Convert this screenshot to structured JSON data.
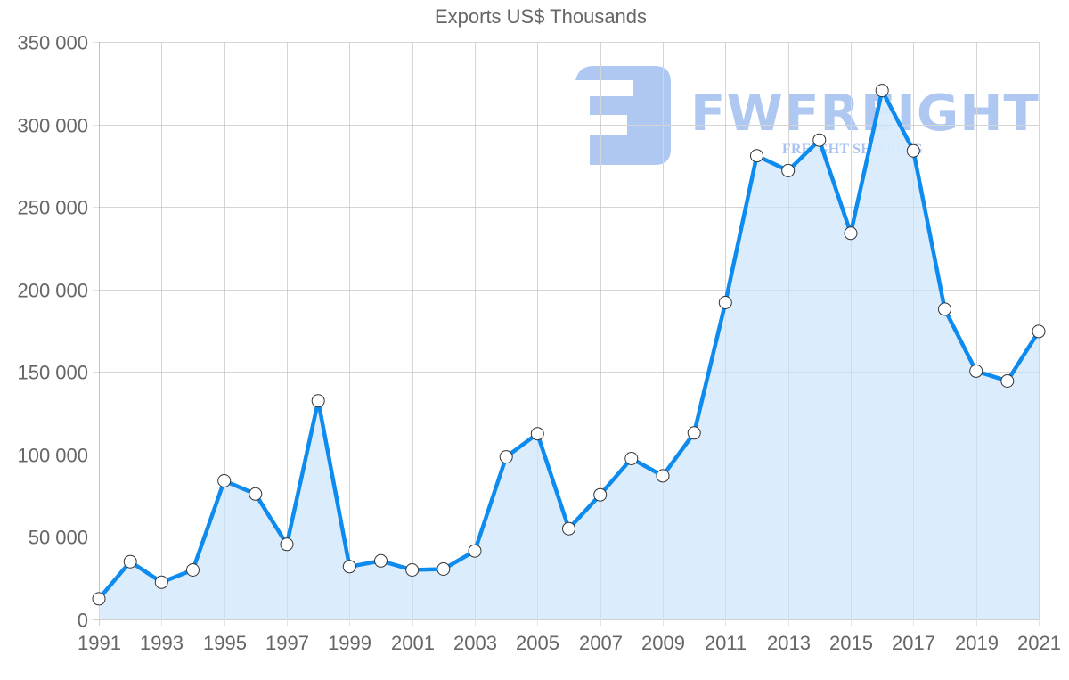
{
  "chart": {
    "title": "Exports US$ Thousands"
  },
  "watermark": {
    "brand": "FWFREIGHT",
    "tagline": "FREIGHT SHIPPING",
    "color": "#6e9be8"
  },
  "style": {
    "line_color": "#0d8bee",
    "fill_color": "#d9ecfd",
    "grid_color": "#e3e3e3",
    "axis_color": "#cfcfcf",
    "text_color": "#666666",
    "marker_fill": "#ffffff",
    "marker_stroke": "#333333"
  },
  "chart_data": {
    "type": "area",
    "title": "Exports US$ Thousands",
    "xlabel": "",
    "ylabel": "",
    "x": [
      1991,
      1992,
      1993,
      1994,
      1995,
      1996,
      1997,
      1998,
      1999,
      2000,
      2001,
      2002,
      2003,
      2004,
      2005,
      2006,
      2007,
      2008,
      2009,
      2010,
      2011,
      2012,
      2013,
      2014,
      2015,
      2016,
      2017,
      2018,
      2019,
      2020,
      2021
    ],
    "series": [
      {
        "name": "Exports US$ Thousands",
        "values": [
          12500,
          35000,
          22500,
          30000,
          84000,
          76000,
          45500,
          132500,
          32000,
          35500,
          30000,
          30500,
          41500,
          98500,
          112500,
          55000,
          75500,
          97500,
          87000,
          113000,
          192000,
          281000,
          272000,
          290500,
          234000,
          320500,
          284000,
          188000,
          150500,
          144500,
          174500
        ]
      }
    ],
    "ylim": [
      0,
      350000
    ],
    "yticks": [
      0,
      50000,
      100000,
      150000,
      200000,
      250000,
      300000,
      350000
    ],
    "ytick_labels": [
      "0",
      "50 000",
      "100 000",
      "150 000",
      "200 000",
      "250 000",
      "300 000",
      "350 000"
    ],
    "xtick_labels": [
      "1991",
      "1993",
      "1995",
      "1997",
      "1999",
      "2001",
      "2003",
      "2005",
      "2007",
      "2009",
      "2011",
      "2013",
      "2015",
      "2017",
      "2019",
      "2021"
    ],
    "grid": true,
    "legend": "none",
    "markers": true
  }
}
